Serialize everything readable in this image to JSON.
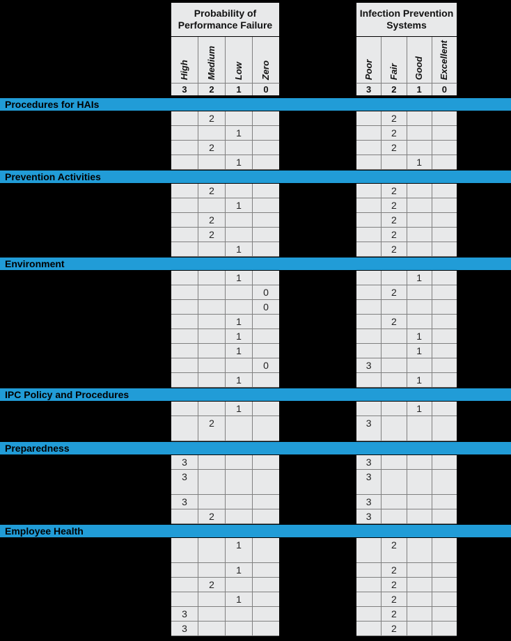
{
  "colors": {
    "page_bg": "#000000",
    "bar_blue": "#219CD7",
    "cell_bg": "#E8E9EA",
    "grid_line": "#7F7F7F",
    "bar_text": "#000000"
  },
  "header": {
    "groups": [
      {
        "id": "ppf",
        "title": "Probability of Performance Failure",
        "columns": [
          {
            "label": "High",
            "score": "3"
          },
          {
            "label": "Medium",
            "score": "2"
          },
          {
            "label": "Low",
            "score": "1"
          },
          {
            "label": "Zero",
            "score": "0"
          }
        ]
      },
      {
        "id": "ips",
        "title": "Infection Prevention Systems",
        "columns": [
          {
            "label": "Poor",
            "score": "3"
          },
          {
            "label": "Fair",
            "score": "2"
          },
          {
            "label": "Good",
            "score": "1"
          },
          {
            "label": "Excellent",
            "score": "0"
          }
        ]
      }
    ]
  },
  "sections": [
    {
      "title": "Procedures for HAIs",
      "rows": [
        {
          "ppf": [
            "",
            "2",
            "",
            ""
          ],
          "ips": [
            "",
            "2",
            "",
            ""
          ]
        },
        {
          "ppf": [
            "",
            "",
            "1",
            ""
          ],
          "ips": [
            "",
            "2",
            "",
            ""
          ]
        },
        {
          "ppf": [
            "",
            "2",
            "",
            ""
          ],
          "ips": [
            "",
            "2",
            "",
            ""
          ]
        },
        {
          "ppf": [
            "",
            "",
            "1",
            ""
          ],
          "ips": [
            "",
            "",
            "1",
            ""
          ]
        }
      ]
    },
    {
      "title": "Prevention Activities",
      "rows": [
        {
          "ppf": [
            "",
            "2",
            "",
            ""
          ],
          "ips": [
            "",
            "2",
            "",
            ""
          ]
        },
        {
          "ppf": [
            "",
            "",
            "1",
            ""
          ],
          "ips": [
            "",
            "2",
            "",
            ""
          ]
        },
        {
          "ppf": [
            "",
            "2",
            "",
            ""
          ],
          "ips": [
            "",
            "2",
            "",
            ""
          ]
        },
        {
          "ppf": [
            "",
            "2",
            "",
            ""
          ],
          "ips": [
            "",
            "2",
            "",
            ""
          ]
        },
        {
          "ppf": [
            "",
            "",
            "1",
            ""
          ],
          "ips": [
            "",
            "2",
            "",
            ""
          ]
        }
      ]
    },
    {
      "title": "Environment",
      "rows": [
        {
          "ppf": [
            "",
            "",
            "1",
            ""
          ],
          "ips": [
            "",
            "",
            "1",
            ""
          ]
        },
        {
          "ppf": [
            "",
            "",
            "",
            "0"
          ],
          "ips": [
            "",
            "2",
            "",
            ""
          ]
        },
        {
          "ppf": [
            "",
            "",
            "",
            "0"
          ],
          "ips": [
            "",
            "",
            "",
            ""
          ]
        },
        {
          "ppf": [
            "",
            "",
            "1",
            ""
          ],
          "ips": [
            "",
            "2",
            "",
            ""
          ]
        },
        {
          "ppf": [
            "",
            "",
            "1",
            ""
          ],
          "ips": [
            "",
            "",
            "1",
            ""
          ]
        },
        {
          "ppf": [
            "",
            "",
            "1",
            ""
          ],
          "ips": [
            "",
            "",
            "1",
            ""
          ]
        },
        {
          "ppf": [
            "",
            "",
            "",
            "0"
          ],
          "ips": [
            "3",
            "",
            "",
            ""
          ]
        },
        {
          "ppf": [
            "",
            "",
            "1",
            ""
          ],
          "ips": [
            "",
            "",
            "1",
            ""
          ]
        }
      ]
    },
    {
      "title": "IPC Policy and Procedures",
      "rows": [
        {
          "ppf": [
            "",
            "",
            "1",
            ""
          ],
          "ips": [
            "",
            "",
            "1",
            ""
          ]
        },
        {
          "ppf": [
            "",
            "2",
            "",
            ""
          ],
          "ips": [
            "3",
            "",
            "",
            ""
          ],
          "tall": true
        }
      ]
    },
    {
      "title": "Preparedness",
      "rows": [
        {
          "ppf": [
            "3",
            "",
            "",
            ""
          ],
          "ips": [
            "3",
            "",
            "",
            ""
          ]
        },
        {
          "ppf": [
            "3",
            "",
            "",
            ""
          ],
          "ips": [
            "3",
            "",
            "",
            ""
          ],
          "tall": true
        },
        {
          "ppf": [
            "3",
            "",
            "",
            ""
          ],
          "ips": [
            "3",
            "",
            "",
            ""
          ]
        },
        {
          "ppf": [
            "",
            "2",
            "",
            ""
          ],
          "ips": [
            "3",
            "",
            "",
            ""
          ]
        }
      ]
    },
    {
      "title": "Employee Health",
      "rows": [
        {
          "ppf": [
            "",
            "",
            "1",
            ""
          ],
          "ips": [
            "",
            "2",
            "",
            ""
          ],
          "tall": true
        },
        {
          "ppf": [
            "",
            "",
            "1",
            ""
          ],
          "ips": [
            "",
            "2",
            "",
            ""
          ]
        },
        {
          "ppf": [
            "",
            "2",
            "",
            ""
          ],
          "ips": [
            "",
            "2",
            "",
            ""
          ]
        },
        {
          "ppf": [
            "",
            "",
            "1",
            ""
          ],
          "ips": [
            "",
            "2",
            "",
            ""
          ]
        },
        {
          "ppf": [
            "3",
            "",
            "",
            ""
          ],
          "ips": [
            "",
            "2",
            "",
            ""
          ]
        },
        {
          "ppf": [
            "3",
            "",
            "",
            ""
          ],
          "ips": [
            "",
            "2",
            "",
            ""
          ]
        }
      ]
    }
  ]
}
